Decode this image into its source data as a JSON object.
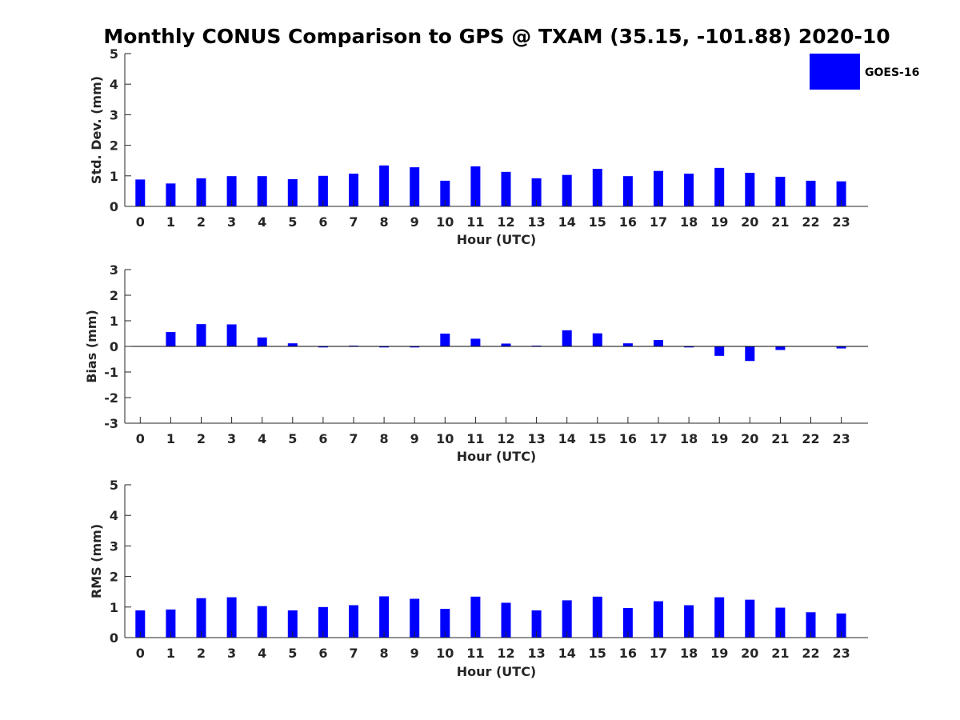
{
  "figure": {
    "title": "Monthly CONUS Comparison to GPS @ TXAM (35.15, -101.88) 2020-10"
  },
  "legend": {
    "label": "GOES-16",
    "color": "#0000ff",
    "location": "top-right"
  },
  "colors": {
    "bar": "#0000ff",
    "axis": "#262626",
    "background": "#ffffff"
  },
  "chart_data": [
    {
      "type": "bar",
      "name": "std",
      "title": "Monthly CONUS Comparison to GPS @ TXAM (35.15, -101.88) 2020-10",
      "xlabel": "Hour (UTC)",
      "ylabel": "Std. Dev. (mm)",
      "ylim": [
        0,
        5
      ],
      "yticks": [
        0,
        1,
        2,
        3,
        4,
        5
      ],
      "categories": [
        "0",
        "1",
        "2",
        "3",
        "4",
        "5",
        "6",
        "7",
        "8",
        "9",
        "10",
        "11",
        "12",
        "13",
        "14",
        "15",
        "16",
        "17",
        "18",
        "19",
        "20",
        "21",
        "22",
        "23"
      ],
      "series": [
        {
          "name": "GOES-16",
          "values": [
            0.88,
            0.75,
            0.92,
            0.99,
            0.99,
            0.89,
            1.0,
            1.07,
            1.34,
            1.28,
            0.84,
            1.31,
            1.13,
            0.92,
            1.03,
            1.23,
            0.99,
            1.16,
            1.07,
            1.26,
            1.1,
            0.97,
            0.84,
            0.82
          ]
        }
      ]
    },
    {
      "type": "bar",
      "name": "bias",
      "title": "",
      "xlabel": "Hour (UTC)",
      "ylabel": "Bias (mm)",
      "ylim": [
        -3,
        3
      ],
      "yticks": [
        -3,
        -2,
        -1,
        0,
        1,
        2,
        3
      ],
      "categories": [
        "0",
        "1",
        "2",
        "3",
        "4",
        "5",
        "6",
        "7",
        "8",
        "9",
        "10",
        "11",
        "12",
        "13",
        "14",
        "15",
        "16",
        "17",
        "18",
        "19",
        "20",
        "21",
        "22",
        "23"
      ],
      "series": [
        {
          "name": "GOES-16",
          "values": [
            0.0,
            0.56,
            0.87,
            0.86,
            0.35,
            0.12,
            -0.04,
            0.03,
            -0.04,
            -0.04,
            0.5,
            0.3,
            0.11,
            0.03,
            0.63,
            0.51,
            0.12,
            0.25,
            -0.04,
            -0.37,
            -0.57,
            -0.14,
            0.0,
            -0.08
          ]
        }
      ]
    },
    {
      "type": "bar",
      "name": "rms",
      "title": "",
      "xlabel": "Hour (UTC)",
      "ylabel": "RMS (mm)",
      "ylim": [
        0,
        5
      ],
      "yticks": [
        0,
        1,
        2,
        3,
        4,
        5
      ],
      "categories": [
        "0",
        "1",
        "2",
        "3",
        "4",
        "5",
        "6",
        "7",
        "8",
        "9",
        "10",
        "11",
        "12",
        "13",
        "14",
        "15",
        "16",
        "17",
        "18",
        "19",
        "20",
        "21",
        "22",
        "23"
      ],
      "series": [
        {
          "name": "GOES-16",
          "values": [
            0.89,
            0.92,
            1.29,
            1.32,
            1.03,
            0.89,
            1.0,
            1.06,
            1.35,
            1.27,
            0.94,
            1.34,
            1.14,
            0.89,
            1.22,
            1.34,
            0.97,
            1.19,
            1.06,
            1.32,
            1.24,
            0.98,
            0.83,
            0.79
          ]
        }
      ]
    }
  ]
}
